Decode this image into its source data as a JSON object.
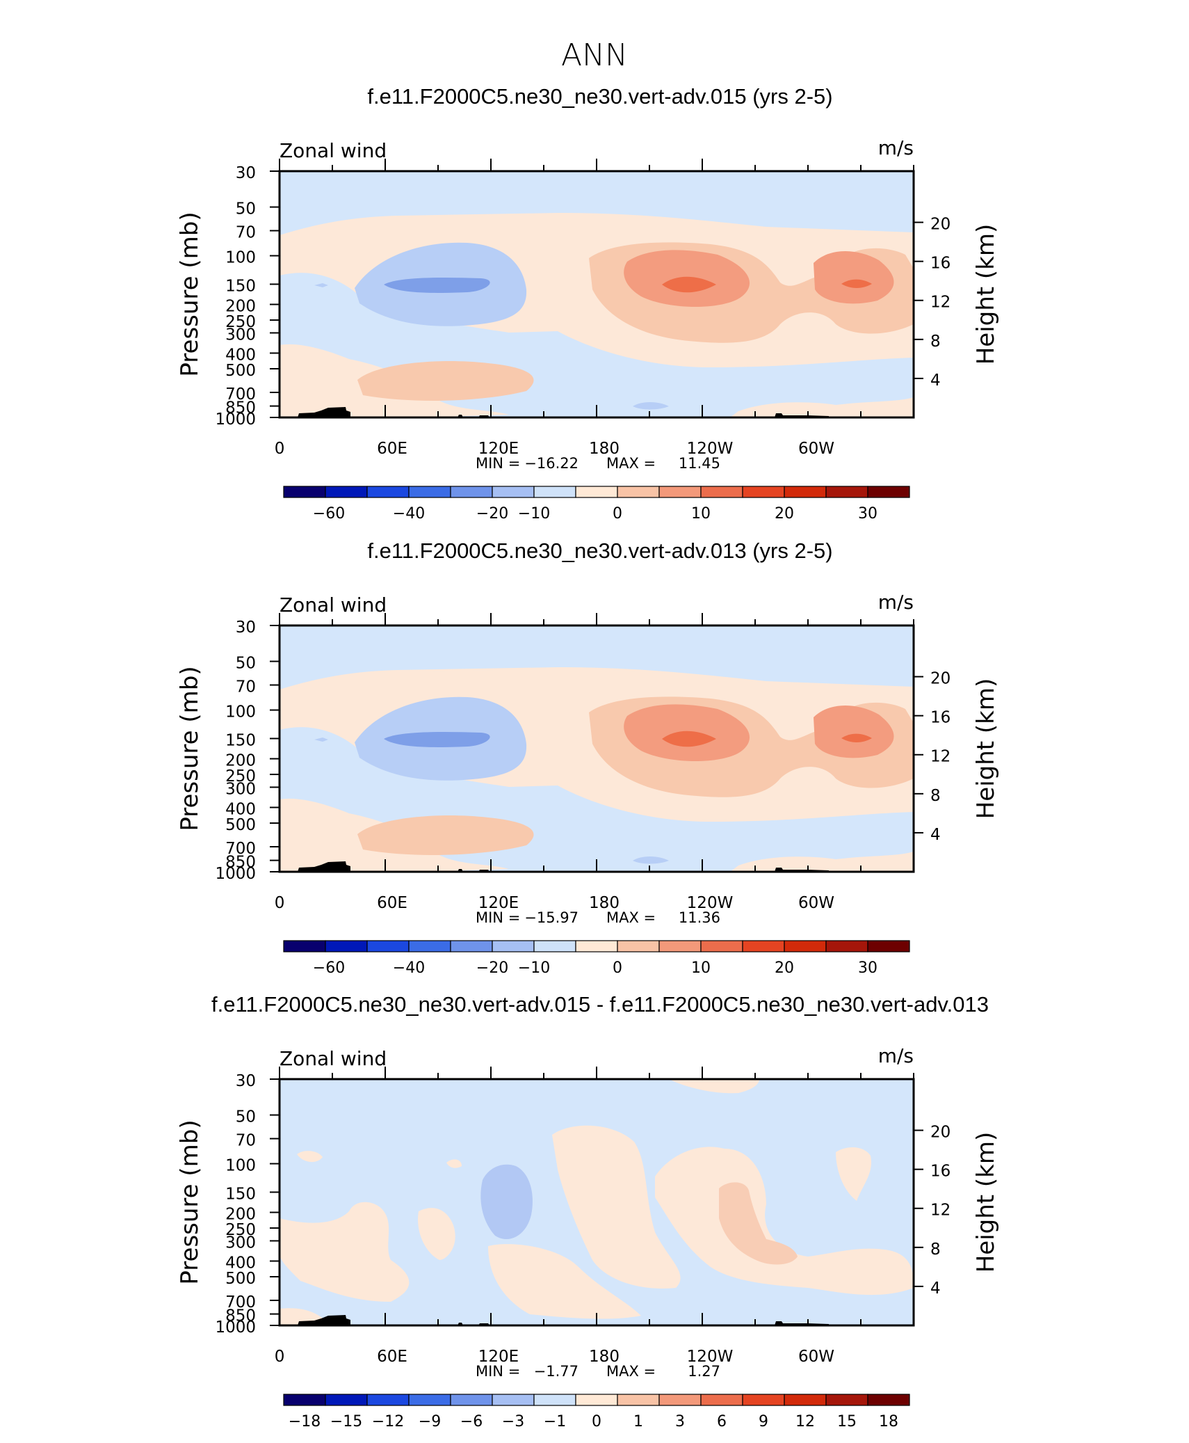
{
  "figure": {
    "title": "ANN",
    "colors": {
      "frame": "#000000",
      "topo": "#000000",
      "background": "#ffffff"
    }
  },
  "chart_data": [
    {
      "type": "heatmap",
      "title": "f.e11.F2000C5.ne30_ne30.vert-adv.015 (yrs 2-5)",
      "left_label": "Zonal wind",
      "units": "m/s",
      "ylabel": "Pressure (mb)",
      "ylabel_right": "Height (km)",
      "x_ticklabels": [
        "0",
        "60E",
        "120E",
        "180",
        "120W",
        "60W"
      ],
      "y_ticklabels": [
        "30",
        "50",
        "70",
        "100",
        "150",
        "200",
        "250",
        "300",
        "400",
        "500",
        "700",
        "850",
        "1000"
      ],
      "y_right_ticklabels": [
        "20",
        "16",
        "12",
        "8",
        "4"
      ],
      "stats": {
        "min_label": "MIN = ",
        "min": "−16.22",
        "max_label": "MAX = ",
        "max": "11.45"
      },
      "colorbar": {
        "labels": [
          "−60",
          "−40",
          "−20",
          "−10",
          "0",
          "10",
          "20",
          "30"
        ],
        "colors": [
          "#08006e",
          "#0018b8",
          "#1b48e0",
          "#3b6ce6",
          "#6f93ea",
          "#a6bff3",
          "#cfe2f9",
          "#ffe9d6",
          "#f8c3a6",
          "#f3997a",
          "#ec6d4c",
          "#e54422",
          "#d22a0a",
          "#a5160a",
          "#6d0000"
        ]
      },
      "fields": {
        "background": "#d4e6fb",
        "warm_band_color": "#fde8d8",
        "neg_core_color": "#b7cef6",
        "neg_max_color": "#7e9fe8",
        "pos_core_color": "#f8c9ad",
        "pos_mid_color": "#f39c7f",
        "pos_max_color": "#ee6e48",
        "low_jet_color": "#f8c9ad"
      }
    },
    {
      "type": "heatmap",
      "title": "f.e11.F2000C5.ne30_ne30.vert-adv.013 (yrs 2-5)",
      "left_label": "Zonal wind",
      "units": "m/s",
      "ylabel": "Pressure (mb)",
      "ylabel_right": "Height (km)",
      "x_ticklabels": [
        "0",
        "60E",
        "120E",
        "180",
        "120W",
        "60W"
      ],
      "y_ticklabels": [
        "30",
        "50",
        "70",
        "100",
        "150",
        "200",
        "250",
        "300",
        "400",
        "500",
        "700",
        "850",
        "1000"
      ],
      "y_right_ticklabels": [
        "20",
        "16",
        "12",
        "8",
        "4"
      ],
      "stats": {
        "min_label": "MIN = ",
        "min": "−15.97",
        "max_label": "MAX = ",
        "max": "11.36"
      },
      "colorbar": {
        "labels": [
          "−60",
          "−40",
          "−20",
          "−10",
          "0",
          "10",
          "20",
          "30"
        ],
        "colors": [
          "#08006e",
          "#0018b8",
          "#1b48e0",
          "#3b6ce6",
          "#6f93ea",
          "#a6bff3",
          "#cfe2f9",
          "#ffe9d6",
          "#f8c3a6",
          "#f3997a",
          "#ec6d4c",
          "#e54422",
          "#d22a0a",
          "#a5160a",
          "#6d0000"
        ]
      },
      "fields": {
        "background": "#d4e6fb",
        "warm_band_color": "#fde8d8",
        "neg_core_color": "#b7cef6",
        "neg_max_color": "#7e9fe8",
        "pos_core_color": "#f8c9ad",
        "pos_mid_color": "#f39c7f",
        "pos_max_color": "#ee6e48",
        "low_jet_color": "#f8c9ad"
      }
    },
    {
      "type": "heatmap",
      "title": "f.e11.F2000C5.ne30_ne30.vert-adv.015 - f.e11.F2000C5.ne30_ne30.vert-adv.013",
      "left_label": "Zonal wind",
      "units": "m/s",
      "ylabel": "Pressure (mb)",
      "ylabel_right": "Height (km)",
      "x_ticklabels": [
        "0",
        "60E",
        "120E",
        "180",
        "120W",
        "60W"
      ],
      "y_ticklabels": [
        "30",
        "50",
        "70",
        "100",
        "150",
        "200",
        "250",
        "300",
        "400",
        "500",
        "700",
        "850",
        "1000"
      ],
      "y_right_ticklabels": [
        "20",
        "16",
        "12",
        "8",
        "4"
      ],
      "stats": {
        "min_label": "MIN = ",
        "min": "−1.77",
        "max_label": "MAX = ",
        "max": "1.27"
      },
      "colorbar": {
        "labels": [
          "−18",
          "−15",
          "−12",
          "−9",
          "−6",
          "−3",
          "−1",
          "0",
          "1",
          "3",
          "6",
          "9",
          "12",
          "15",
          "18"
        ],
        "colors": [
          "#08006e",
          "#0018b8",
          "#1b48e0",
          "#3b6ce6",
          "#6f93ea",
          "#a6bff3",
          "#cfe2f9",
          "#ffe9d6",
          "#f8c3a6",
          "#f3997a",
          "#ec6d4c",
          "#e54422",
          "#d22a0a",
          "#a5160a",
          "#6d0000"
        ]
      },
      "fields": {
        "background": "#d4e6fb",
        "warm_band_color": "#fde8d8",
        "neg_core_color": "#b2c8f4",
        "neg_max_color": "#b2c8f4",
        "pos_core_color": "#f8cdb5",
        "pos_mid_color": "#f8cdb5",
        "pos_max_color": "#f8cdb5",
        "low_jet_color": "#fde8d8"
      }
    }
  ]
}
